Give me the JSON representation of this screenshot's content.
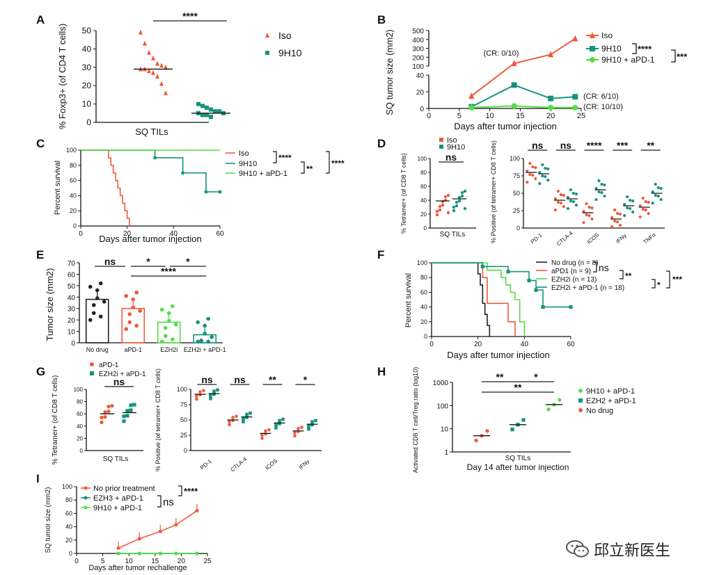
{
  "colors": {
    "red": "#ee5a3c",
    "teal": "#17937e",
    "green": "#55dd44",
    "black": "#222222"
  },
  "watermark": {
    "icon": "wechat-icon",
    "text": "邱立新医生"
  },
  "chart_data": [
    {
      "panel": "A",
      "type": "scatter",
      "ylabel": "% Foxp3+ (of CD4 T cells)",
      "xlabel": "SQ TILs",
      "ylim": [
        0,
        50
      ],
      "legend": [
        "Iso",
        "9H10"
      ],
      "sig": "****",
      "series": [
        {
          "name": "Iso",
          "values": [
            49,
            43,
            38,
            35,
            32,
            31,
            30,
            29,
            29,
            28,
            27,
            25,
            21,
            16
          ]
        },
        {
          "name": "9H10",
          "values": [
            10,
            9,
            8,
            7,
            6,
            6,
            5,
            5,
            4,
            4,
            3
          ]
        }
      ],
      "means": [
        29,
        5
      ]
    },
    {
      "panel": "B",
      "type": "line",
      "ylabel": "SQ tumor size (mm2)",
      "xlabel": "Days after tumor injection",
      "xticks": [
        0,
        5,
        10,
        15,
        20,
        25
      ],
      "series": [
        {
          "name": "Iso",
          "x": [
            7,
            14,
            20,
            24
          ],
          "y": [
            15,
            130,
            230,
            410
          ]
        },
        {
          "name": "9H10",
          "x": [
            7,
            14,
            20,
            24
          ],
          "y": [
            2,
            28,
            12,
            14
          ]
        },
        {
          "name": "9H10 + aPD-1",
          "x": [
            7,
            14,
            20,
            24
          ],
          "y": [
            1,
            3,
            1,
            1
          ]
        }
      ],
      "annotations": [
        "(CR: 0/10)",
        "(CR: 6/10)",
        "(CR: 10/10)"
      ],
      "sig": [
        "****",
        "***"
      ]
    },
    {
      "panel": "C",
      "type": "line",
      "ylabel": "Percent survival",
      "xlabel": "Days after tumor injection",
      "xlim": [
        0,
        60
      ],
      "ylim": [
        0,
        100
      ],
      "series": [
        {
          "name": "Iso",
          "x": [
            0,
            11,
            12,
            13,
            14,
            15,
            16,
            17,
            18,
            19,
            20,
            21
          ],
          "y": [
            100,
            100,
            90,
            80,
            70,
            60,
            50,
            40,
            30,
            20,
            10,
            0
          ]
        },
        {
          "name": "9H10",
          "x": [
            0,
            32,
            44,
            54,
            60
          ],
          "y": [
            100,
            90,
            70,
            45,
            45
          ]
        },
        {
          "name": "9H10 + aPD-1",
          "x": [
            0,
            60
          ],
          "y": [
            100,
            100
          ]
        }
      ],
      "sig": [
        "****",
        "**",
        "****"
      ]
    },
    {
      "panel": "D",
      "type": "scatter",
      "legend": [
        "Iso",
        "9H10"
      ],
      "left": {
        "ylabel": "% Tetramer+ (of CD8 T cells)",
        "xlabel": "SQ TILs",
        "sig": "ns",
        "ylim": [
          0,
          100
        ],
        "means": [
          39,
          42
        ]
      },
      "right": {
        "ylabel": "% Positive (of tetramer+ CD8 T cells)",
        "categories": [
          "PD-1",
          "CTLA-4",
          "ICOS",
          "IFNγ",
          "TNFα"
        ],
        "ylim": [
          0,
          100
        ],
        "means_iso": [
          80,
          40,
          22,
          13,
          30
        ],
        "means_9h10": [
          78,
          42,
          55,
          32,
          50
        ],
        "sig": [
          "ns",
          "ns",
          "****",
          "***",
          "**"
        ]
      }
    },
    {
      "panel": "E",
      "type": "bar",
      "ylabel": "Tumor size (mm2)",
      "categories": [
        "No drug",
        "aPD-1",
        "EZH2i",
        "EZH2i + aPD-1"
      ],
      "values": [
        38,
        30,
        18,
        7
      ],
      "ylim": [
        0,
        70
      ],
      "sig": [
        "ns",
        "*",
        "*",
        "****"
      ]
    },
    {
      "panel": "F",
      "type": "line",
      "ylabel": "Percent survival",
      "xlabel": "Days after tumor injection",
      "xlim": [
        0,
        60
      ],
      "ylim": [
        0,
        100
      ],
      "legend": [
        "No drug (n = 8)",
        "aPD1 (n = 9)",
        "EZH2i (n = 13)",
        "EZH2i + aPD-1 (n = 18)"
      ],
      "series": [
        {
          "name": "No drug",
          "x": [
            0,
            18,
            20,
            21,
            22,
            23,
            24,
            25
          ],
          "y": [
            100,
            100,
            85,
            70,
            45,
            30,
            15,
            0
          ]
        },
        {
          "name": "aPD1",
          "x": [
            0,
            20,
            22,
            24,
            30,
            33,
            36
          ],
          "y": [
            100,
            100,
            80,
            45,
            45,
            20,
            0
          ]
        },
        {
          "name": "EZH2i",
          "x": [
            0,
            16,
            24,
            30,
            32,
            34,
            36,
            38,
            40
          ],
          "y": [
            100,
            100,
            90,
            80,
            70,
            60,
            50,
            20,
            0
          ]
        },
        {
          "name": "EZH2i + aPD-1",
          "x": [
            0,
            17,
            22,
            33,
            42,
            45,
            48,
            60
          ],
          "y": [
            100,
            100,
            95,
            88,
            76,
            63,
            40,
            40
          ]
        }
      ],
      "sig": [
        "ns",
        "**",
        "*",
        "***"
      ]
    },
    {
      "panel": "G",
      "type": "scatter",
      "legend": [
        "aPD-1",
        "EZH2i + aPD-1"
      ],
      "left": {
        "ylabel": "% Tetramer+ (of CD8 T cells)",
        "xlabel": "SQ TILs",
        "ylim": [
          0,
          100
        ],
        "means": [
          60,
          62
        ],
        "sig": "ns"
      },
      "right": {
        "ylabel": "% Positive (of tetramer+ CD8 T cells)",
        "categories": [
          "PD-1",
          "CTLA-4",
          "ICOS",
          "IFNγ"
        ],
        "ylim": [
          0,
          100
        ],
        "means_a": [
          92,
          50,
          28,
          32
        ],
        "means_b": [
          93,
          55,
          45,
          43
        ],
        "sig": [
          "ns",
          "ns",
          "**",
          "*"
        ]
      }
    },
    {
      "panel": "H",
      "type": "scatter",
      "ylabel": "Activated CD8 T cell/Treg ratio (log10)",
      "xlabel": "SQ TILs",
      "subtitle": "Day 14 after tumor injection",
      "yscale": "log",
      "yticks": [
        1,
        10,
        100,
        1000
      ],
      "legend": [
        "9H10 + aPD-1",
        "EZH2 + aPD-1",
        "No drug"
      ],
      "means": [
        5,
        15,
        110
      ],
      "sig": [
        "**",
        "*",
        "**"
      ]
    },
    {
      "panel": "I",
      "type": "line",
      "ylabel": "SQ tumor size (mm2)",
      "xlabel": "Days after tumor rechallenge",
      "xticks": [
        0,
        5,
        10,
        15,
        20,
        25
      ],
      "ylim": [
        0,
        100
      ],
      "series": [
        {
          "name": "No prior treatment",
          "x": [
            8,
            12,
            16,
            19,
            23
          ],
          "y": [
            8,
            22,
            33,
            43,
            64
          ]
        },
        {
          "name": "EZH3 + aPD-1",
          "x": [
            8,
            12,
            16,
            19,
            23
          ],
          "y": [
            0,
            0,
            0,
            0,
            0
          ]
        },
        {
          "name": "9H10 + aPD-1",
          "x": [
            8,
            12,
            16,
            19,
            23
          ],
          "y": [
            0,
            0,
            0,
            0,
            0
          ]
        }
      ],
      "sig": [
        "****",
        "ns"
      ]
    }
  ]
}
